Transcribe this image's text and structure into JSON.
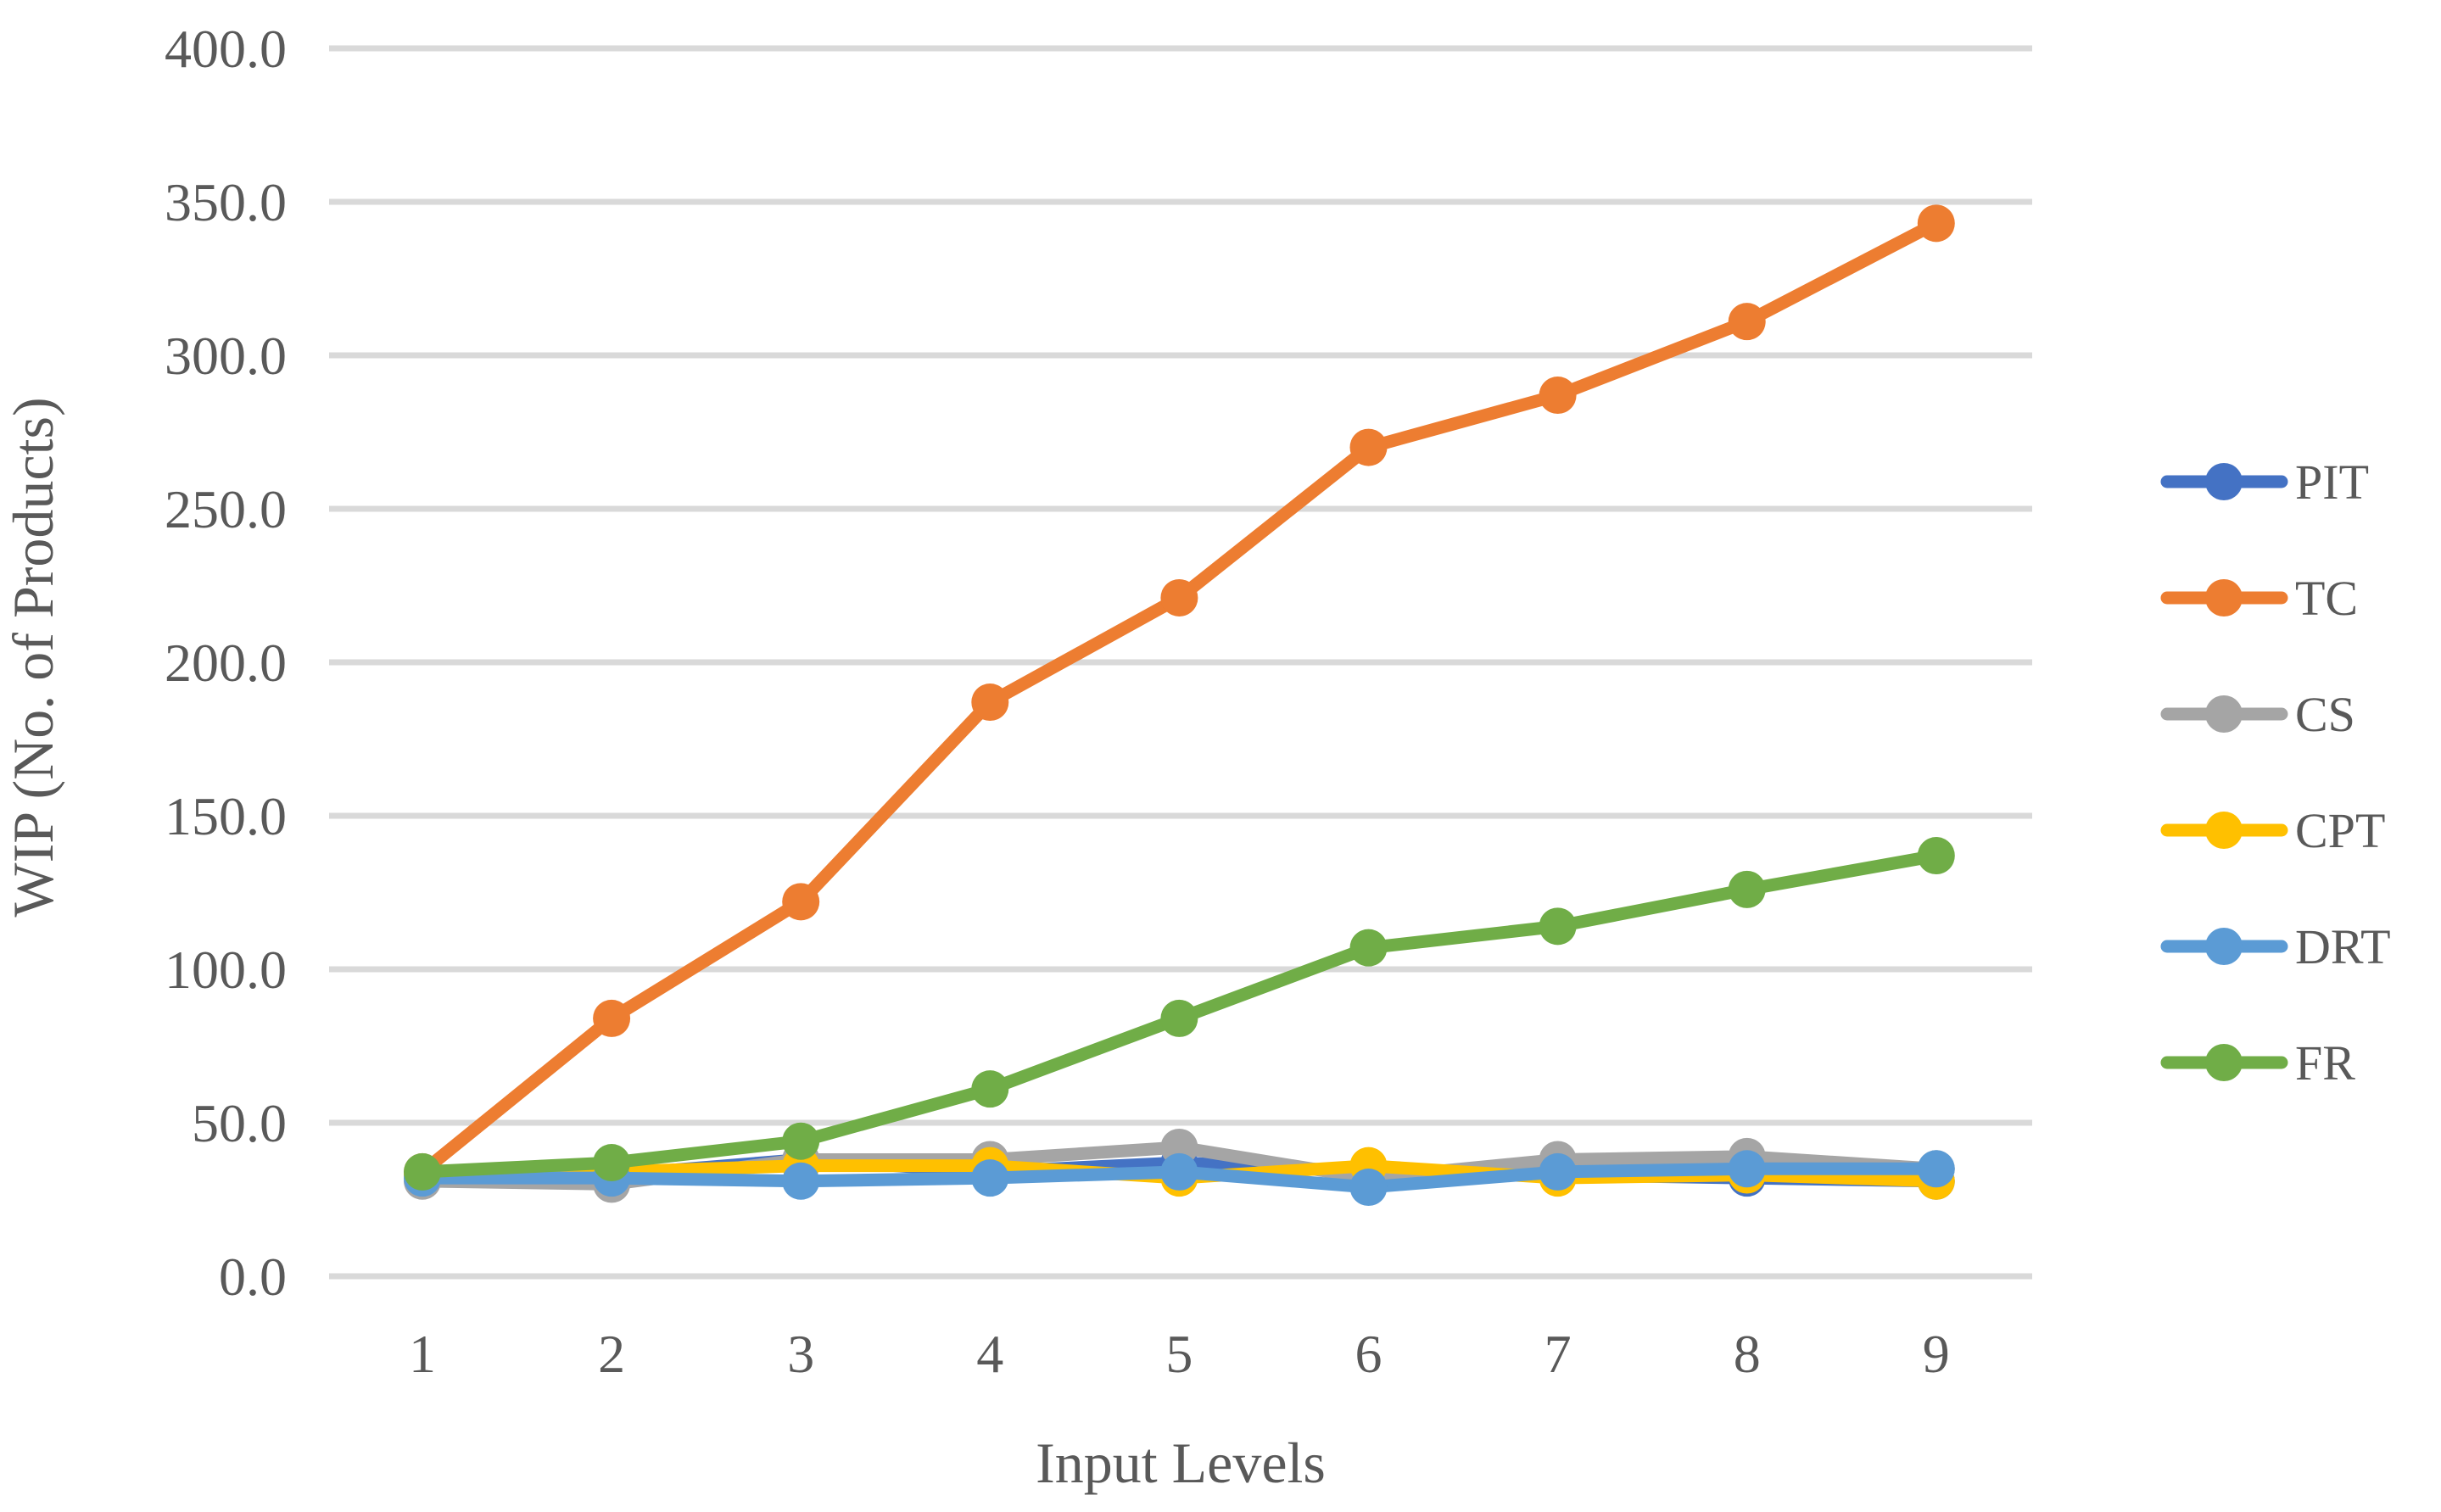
{
  "chart_data": {
    "type": "line",
    "title": "",
    "xlabel": "Input Levels",
    "ylabel": "WIP (No. of Products)",
    "categories": [
      "1",
      "2",
      "3",
      "4",
      "5",
      "6",
      "7",
      "8",
      "9"
    ],
    "y_tick_labels": [
      "0.0",
      "50.0",
      "100.0",
      "150.0",
      "200.0",
      "250.0",
      "300.0",
      "350.0",
      "400.0"
    ],
    "ylim": [
      0,
      400
    ],
    "y_step": 50,
    "grid": true,
    "grid_color": "#D9D9D9",
    "text_color": "#595959",
    "legend_position": "right",
    "series": [
      {
        "name": "PIT",
        "color": "#4472C4",
        "values": [
          33,
          33,
          38,
          34,
          37,
          34,
          33,
          32,
          31
        ]
      },
      {
        "name": "TC",
        "color": "#ED7D31",
        "values": [
          34,
          84,
          122,
          187,
          221,
          270,
          287,
          311,
          343
        ]
      },
      {
        "name": "CS",
        "color": "#A5A5A5",
        "values": [
          31,
          30,
          38,
          38,
          42,
          32,
          38,
          39,
          35
        ]
      },
      {
        "name": "CPT",
        "color": "#FFC000",
        "values": [
          33,
          34,
          36,
          36,
          32,
          36,
          32,
          33,
          31
        ]
      },
      {
        "name": "DRT",
        "color": "#5B9BD5",
        "values": [
          32,
          32,
          31,
          32,
          34,
          29,
          34,
          35,
          35
        ]
      },
      {
        "name": "FR",
        "color": "#70AD47",
        "values": [
          34,
          37,
          44,
          61,
          84,
          107,
          114,
          126,
          137
        ]
      }
    ]
  }
}
